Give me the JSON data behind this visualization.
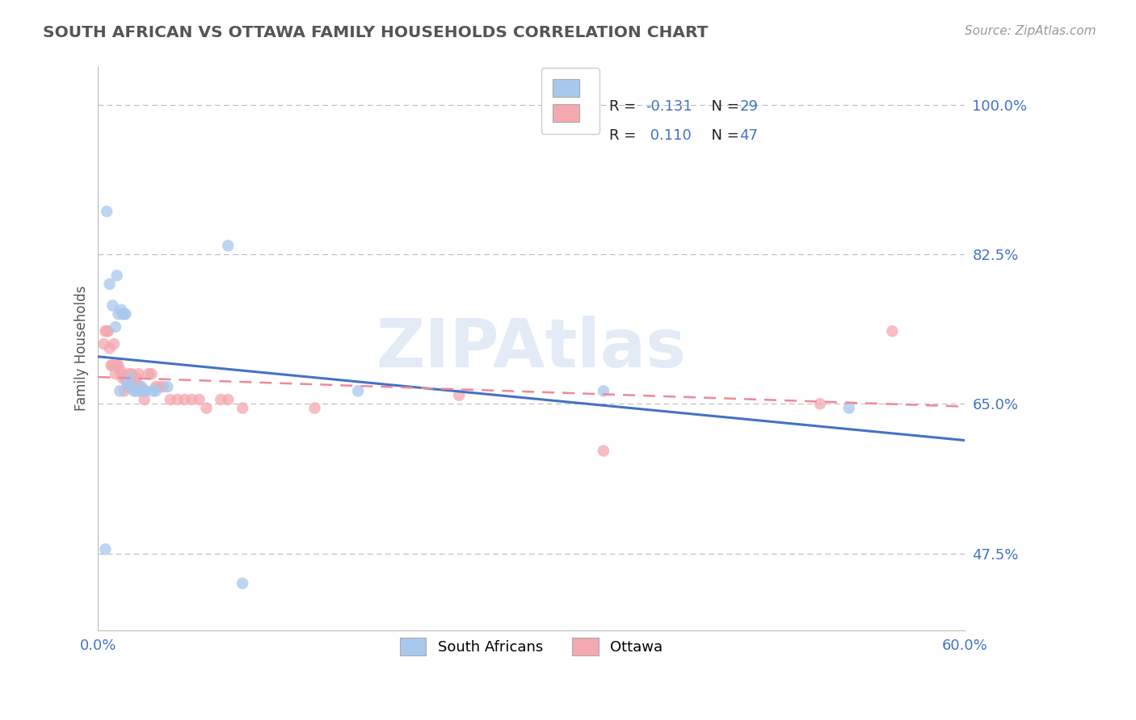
{
  "title": "SOUTH AFRICAN VS OTTAWA FAMILY HOUSEHOLDS CORRELATION CHART",
  "source": "Source: ZipAtlas.com",
  "ylabel": "Family Households",
  "y_ticks": [
    47.5,
    65.0,
    82.5,
    100.0
  ],
  "x_min": 0.0,
  "x_max": 0.6,
  "y_min": 0.385,
  "y_max": 1.045,
  "r_sa": -0.131,
  "n_sa": 29,
  "r_ot": 0.11,
  "n_ot": 47,
  "color_blue": "#A8C8EE",
  "color_pink": "#F4A8B0",
  "line_blue": "#4472C4",
  "line_pink": "#F08898",
  "watermark_text": "ZIPAtlas",
  "watermark_color": "#C8D8F0",
  "south_african_x": [
    0.005,
    0.006,
    0.008,
    0.01,
    0.012,
    0.013,
    0.014,
    0.015,
    0.016,
    0.017,
    0.018,
    0.019,
    0.02,
    0.022,
    0.022,
    0.025,
    0.026,
    0.028,
    0.03,
    0.032,
    0.033,
    0.038,
    0.04,
    0.048,
    0.09,
    0.1,
    0.18,
    0.35,
    0.52
  ],
  "south_african_y": [
    0.48,
    0.875,
    0.79,
    0.765,
    0.74,
    0.8,
    0.755,
    0.665,
    0.76,
    0.755,
    0.755,
    0.755,
    0.675,
    0.68,
    0.67,
    0.665,
    0.665,
    0.665,
    0.67,
    0.665,
    0.665,
    0.665,
    0.665,
    0.67,
    0.835,
    0.44,
    0.665,
    0.665,
    0.645
  ],
  "ottawa_x": [
    0.004,
    0.005,
    0.006,
    0.007,
    0.008,
    0.009,
    0.01,
    0.011,
    0.012,
    0.013,
    0.014,
    0.015,
    0.016,
    0.017,
    0.018,
    0.019,
    0.02,
    0.021,
    0.022,
    0.023,
    0.024,
    0.025,
    0.026,
    0.027,
    0.028,
    0.029,
    0.03,
    0.032,
    0.035,
    0.037,
    0.04,
    0.042,
    0.045,
    0.05,
    0.055,
    0.06,
    0.065,
    0.07,
    0.075,
    0.085,
    0.09,
    0.1,
    0.15,
    0.25,
    0.35,
    0.5,
    0.55
  ],
  "ottawa_y": [
    0.72,
    0.735,
    0.735,
    0.735,
    0.715,
    0.695,
    0.695,
    0.72,
    0.685,
    0.695,
    0.695,
    0.69,
    0.685,
    0.68,
    0.665,
    0.68,
    0.67,
    0.685,
    0.67,
    0.685,
    0.67,
    0.675,
    0.67,
    0.68,
    0.685,
    0.67,
    0.665,
    0.655,
    0.685,
    0.685,
    0.67,
    0.67,
    0.67,
    0.655,
    0.655,
    0.655,
    0.655,
    0.655,
    0.645,
    0.655,
    0.655,
    0.645,
    0.645,
    0.66,
    0.595,
    0.65,
    0.735
  ]
}
